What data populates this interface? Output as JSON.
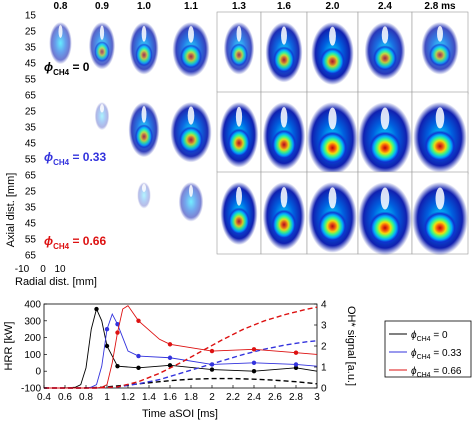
{
  "figure": {
    "time_labels": [
      "0.8",
      "0.9",
      "1.0",
      "1.1",
      "1.3",
      "1.6",
      "2.0",
      "2.4",
      "2.8 ms"
    ],
    "axial_ticks": [
      "15",
      "25",
      "35",
      "45",
      "55",
      "65",
      "25",
      "35",
      "45",
      "55",
      "65",
      "25",
      "35",
      "45",
      "55",
      "65"
    ],
    "axial_label": "Axial dist. [mm]",
    "radial_ticks": [
      "-10",
      "0",
      "10"
    ],
    "radial_label": "Radial dist. [mm]",
    "row_labels": [
      {
        "prefix": "ϕ",
        "sub": "CH4",
        "value": " = 0",
        "color": "#000000"
      },
      {
        "prefix": "ϕ",
        "sub": "CH4",
        "value": " = 0.33",
        "color": "#3333dd"
      },
      {
        "prefix": "ϕ",
        "sub": "CH4",
        "value": " = 0.66",
        "color": "#dd1111"
      }
    ],
    "row_intensity": [
      [
        0.35,
        0.45,
        0.55,
        0.6,
        0.55,
        0.7,
        0.75,
        0.65,
        0.55
      ],
      [
        0.0,
        0.08,
        0.6,
        0.7,
        0.8,
        0.85,
        0.95,
        0.95,
        0.9
      ],
      [
        0.0,
        0.0,
        0.05,
        0.3,
        0.75,
        0.85,
        0.9,
        0.95,
        0.95
      ]
    ]
  },
  "chart_data": {
    "type": "line",
    "xlabel": "Time aSOI [ms]",
    "ylabel": "HRR [kW]",
    "y2label": "OH* signal [a.u.]",
    "xlim": [
      0.4,
      3.0
    ],
    "ylim": [
      -100,
      400
    ],
    "y2lim": [
      0,
      4
    ],
    "x_ticks": [
      "0.4",
      "0.6",
      "0.8",
      "1",
      "1.2",
      "1.4",
      "1.6",
      "1.8",
      "2",
      "2.2",
      "2.4",
      "2.6",
      "2.8",
      "3"
    ],
    "y_ticks": [
      "-100",
      "0",
      "100",
      "200",
      "300",
      "400"
    ],
    "y2_ticks": [
      "0",
      "1",
      "2",
      "3",
      "4"
    ],
    "series": [
      {
        "name": "ϕCH4 = 0",
        "color": "#000000",
        "hrr": {
          "x": [
            0.4,
            0.6,
            0.7,
            0.75,
            0.8,
            0.85,
            0.9,
            0.95,
            1.0,
            1.1,
            1.3,
            1.6,
            2.0,
            2.4,
            2.8,
            3.0
          ],
          "y": [
            -100,
            -100,
            -95,
            -80,
            20,
            250,
            370,
            300,
            150,
            30,
            20,
            35,
            10,
            0,
            20,
            0
          ]
        },
        "marker_x": [
          0.9,
          1.0,
          1.1,
          1.3,
          1.6,
          2.0,
          2.4,
          2.8
        ],
        "marker_y": [
          370,
          150,
          30,
          20,
          35,
          10,
          0,
          20
        ],
        "oh": {
          "x": [
            0.4,
            0.8,
            1.0,
            1.2,
            1.4,
            1.6,
            1.8,
            2.0,
            2.2,
            2.4,
            2.6,
            2.8,
            3.0
          ],
          "y": [
            0,
            0,
            0.05,
            0.15,
            0.25,
            0.35,
            0.42,
            0.45,
            0.45,
            0.42,
            0.37,
            0.3,
            0.2
          ]
        }
      },
      {
        "name": "ϕCH4 = 0.33",
        "color": "#3333dd",
        "hrr": {
          "x": [
            0.4,
            0.8,
            0.85,
            0.9,
            0.95,
            1.0,
            1.05,
            1.1,
            1.2,
            1.3,
            1.6,
            2.0,
            2.4,
            2.8,
            3.0
          ],
          "y": [
            -100,
            -100,
            -95,
            -80,
            30,
            250,
            340,
            280,
            120,
            90,
            80,
            40,
            50,
            40,
            30
          ]
        },
        "marker_x": [
          1.0,
          1.1,
          1.3,
          1.6,
          2.0,
          2.4,
          2.8
        ],
        "marker_y": [
          250,
          280,
          90,
          80,
          40,
          50,
          40
        ],
        "oh": {
          "x": [
            0.4,
            0.9,
            1.1,
            1.3,
            1.5,
            1.7,
            1.9,
            2.1,
            2.3,
            2.5,
            2.7,
            2.9,
            3.0
          ],
          "y": [
            0,
            0,
            0.05,
            0.2,
            0.4,
            0.7,
            1.0,
            1.3,
            1.6,
            1.85,
            2.05,
            2.2,
            2.25
          ]
        }
      },
      {
        "name": "ϕCH4 = 0.66",
        "color": "#dd1111",
        "hrr": {
          "x": [
            0.4,
            0.9,
            0.95,
            1.0,
            1.05,
            1.1,
            1.15,
            1.2,
            1.3,
            1.5,
            1.6,
            2.0,
            2.4,
            2.8,
            3.0
          ],
          "y": [
            -100,
            -100,
            -95,
            -80,
            50,
            230,
            370,
            390,
            300,
            190,
            160,
            120,
            130,
            110,
            100
          ]
        },
        "marker_x": [
          1.1,
          1.3,
          1.6,
          2.0,
          2.4,
          2.8
        ],
        "marker_y": [
          230,
          300,
          160,
          120,
          130,
          110
        ],
        "oh": {
          "x": [
            0.4,
            0.9,
            1.1,
            1.3,
            1.5,
            1.7,
            1.9,
            2.1,
            2.3,
            2.5,
            2.7,
            2.9,
            3.0
          ],
          "y": [
            0,
            0,
            0.05,
            0.3,
            0.7,
            1.2,
            1.75,
            2.3,
            2.8,
            3.2,
            3.5,
            3.75,
            3.85
          ]
        }
      }
    ],
    "legend": {
      "placement": "right",
      "entries": [
        {
          "prefix": "ϕ",
          "sub": "CH4",
          "value": " = 0",
          "color": "#000000"
        },
        {
          "prefix": "ϕ",
          "sub": "CH4",
          "value": " = 0.33",
          "color": "#3333dd"
        },
        {
          "prefix": "ϕ",
          "sub": "CH4",
          "value": " = 0.66",
          "color": "#dd1111"
        }
      ]
    }
  }
}
